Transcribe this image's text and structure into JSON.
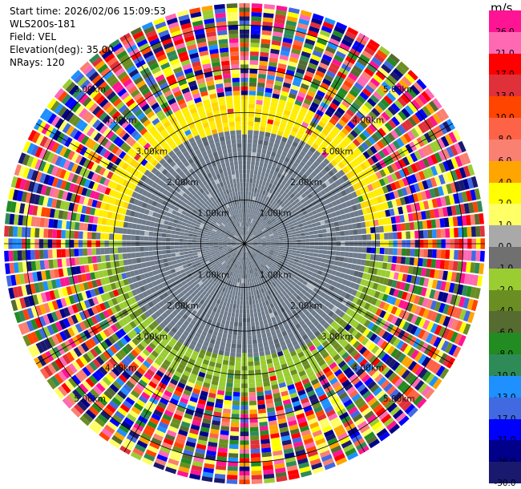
{
  "header": {
    "start_time": "Start time: 2026/02/06 15:09:53",
    "site": "WLS200s-181",
    "field": "Field: VEL",
    "elevation": "Elevation(deg): 35.00",
    "nrays": "NRays: 120"
  },
  "chart_data": {
    "type": "ppi",
    "field": "VEL",
    "units": "m/s",
    "n_rays": 120,
    "range_rings_km": [
      1,
      2,
      3,
      4,
      5
    ],
    "ring_labels": [
      "1.00km",
      "2.00km",
      "3.00km",
      "4.00km",
      "5.00km"
    ],
    "max_range_km": 5.5,
    "colorbar": {
      "unit": "m/s",
      "ticks": [
        "26.0",
        "21.0",
        "17.0",
        "13.0",
        "10.0",
        "8.0",
        "6.0",
        "4.0",
        "2.0",
        "1.0",
        "0.0",
        "-1.0",
        "-2.0",
        "-4.0",
        "-6.0",
        "-8.0",
        "-10.0",
        "-13.0",
        "-17.0",
        "-21.0",
        "-26.0",
        "-30.0"
      ],
      "colors": [
        "#ff1493",
        "#ff69b4",
        "#ff0000",
        "#e0303a",
        "#ff4500",
        "#ff6347",
        "#fa8072",
        "#ffa500",
        "#ffff00",
        "#ffff66",
        "#a9a9a9",
        "#707070",
        "#9acd32",
        "#6b8e23",
        "#556b2f",
        "#228b22",
        "#2e8b57",
        "#1e90ff",
        "#4169e1",
        "#0000ff",
        "#00008b",
        "#191970"
      ]
    },
    "regions": [
      {
        "name": "near-zero gray core",
        "from_km": 0,
        "to_km": 2.8,
        "value_range": [
          -1,
          1
        ]
      },
      {
        "name": "positive band (north)",
        "from_km": 2.5,
        "to_km": 3.4,
        "value_range": [
          2,
          4
        ]
      },
      {
        "name": "negative band (south)",
        "from_km": 2.3,
        "to_km": 3.4,
        "value_range": [
          -4,
          -2
        ]
      },
      {
        "name": "noise (outer)",
        "from_km": 3.4,
        "to_km": 5.5,
        "value_range": [
          -30,
          26
        ]
      }
    ]
  }
}
